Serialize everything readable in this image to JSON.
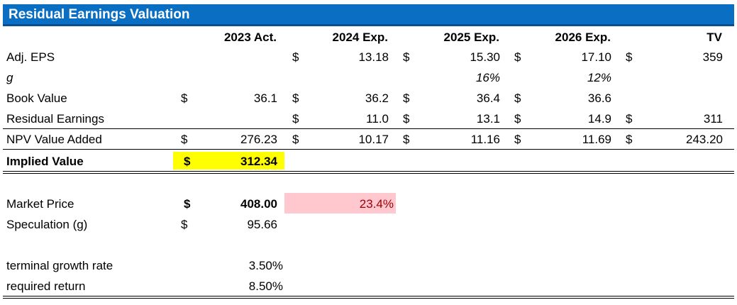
{
  "title": "Residual Earnings Valuation",
  "headers": [
    "2023 Act.",
    "2024 Exp.",
    "2025 Exp.",
    "2026 Exp.",
    "TV"
  ],
  "currency_symbol": "$",
  "rows": {
    "adj_eps": {
      "label": "Adj. EPS",
      "values": [
        "",
        "13.18",
        "15.30",
        "17.10",
        "359"
      ]
    },
    "g": {
      "label": "g",
      "values": [
        "",
        "",
        "16%",
        "12%",
        ""
      ]
    },
    "book_value": {
      "label": "Book Value",
      "values": [
        "36.1",
        "36.2",
        "36.4",
        "36.6",
        ""
      ]
    },
    "residual_earnings": {
      "label": "Residual Earnings",
      "values": [
        "",
        "11.0",
        "13.1",
        "14.9",
        "311"
      ]
    },
    "npv_value_added": {
      "label": "NPV Value Added",
      "values": [
        "276.23",
        "10.17",
        "11.16",
        "11.69",
        "243.20"
      ]
    },
    "implied_value": {
      "label": "Implied Value",
      "value": "312.34"
    }
  },
  "market": {
    "market_price_label": "Market Price",
    "market_price_value": "408.00",
    "premium_pct": "23.4%",
    "speculation_label": "Speculation (g)",
    "speculation_value": "95.66"
  },
  "assumptions": {
    "terminal_growth_label": "terminal growth rate",
    "terminal_growth_value": "3.50%",
    "required_return_label": "required return",
    "required_return_value": "8.50%"
  },
  "colors": {
    "title_bar": "#0a6fc2",
    "implied_highlight": "#ffff00",
    "premium_fill": "#ffc7ce",
    "premium_text": "#9c0006"
  }
}
